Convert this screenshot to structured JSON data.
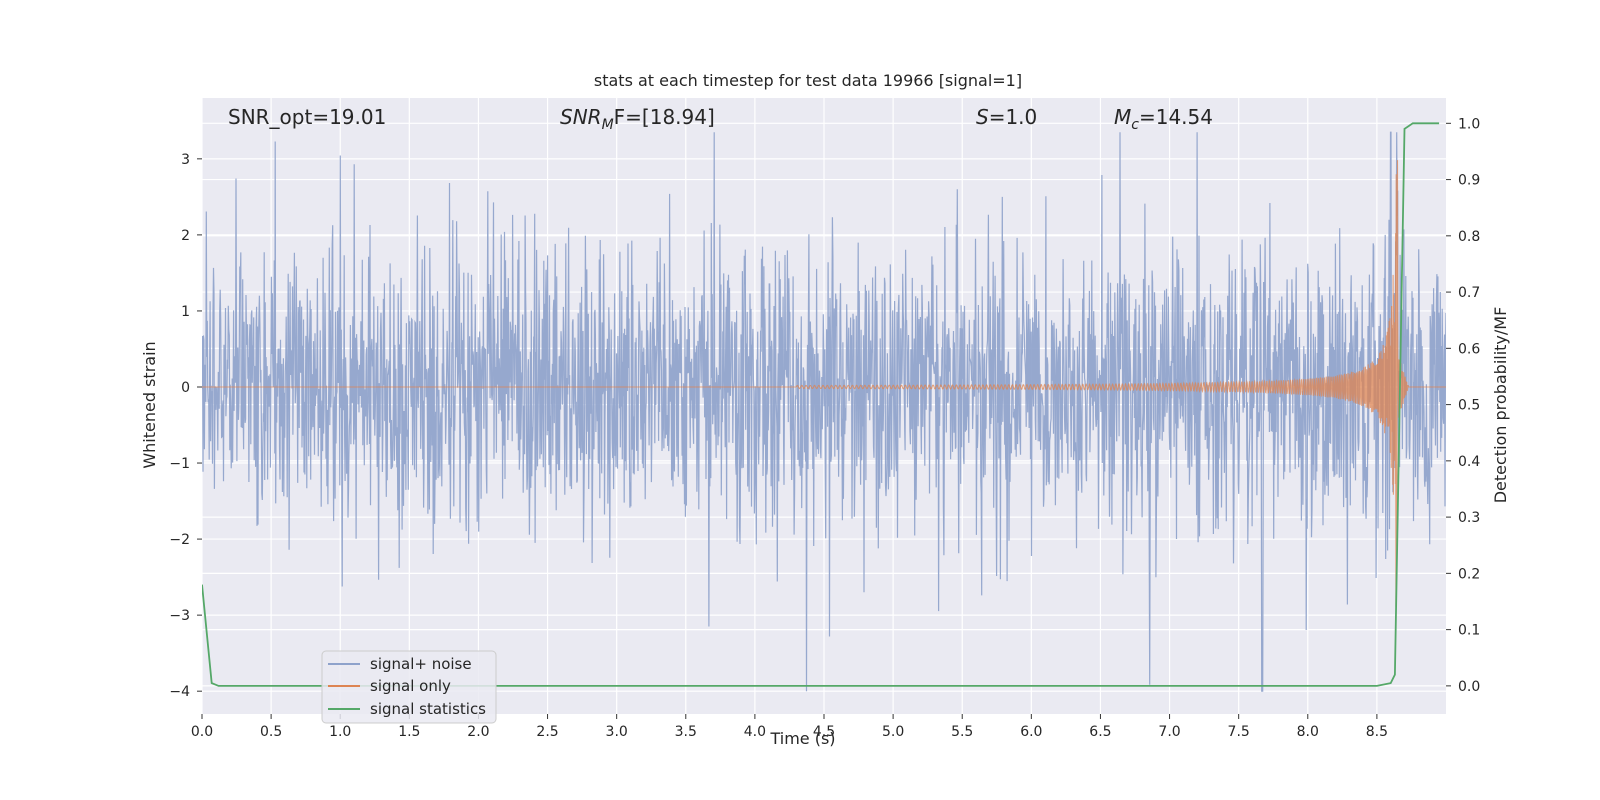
{
  "chart_data": {
    "type": "line",
    "title": "stats at each timestep for test data 19966 [signal=1]",
    "xlabel": "Time (s)",
    "ylabel": "Whitened strain",
    "y2label": "Detection probability/MF",
    "xlim": [
      0.0,
      9.0
    ],
    "ylim": [
      -4.3,
      3.8
    ],
    "y2lim": [
      -0.05,
      1.045
    ],
    "xticks": [
      "0.0",
      "0.5",
      "1.0",
      "1.5",
      "2.0",
      "2.5",
      "3.0",
      "3.5",
      "4.0",
      "4.5",
      "5.0",
      "5.5",
      "6.0",
      "6.5",
      "7.0",
      "7.5",
      "8.0",
      "8.5"
    ],
    "yticks": [
      "3",
      "2",
      "1",
      "0",
      "−1",
      "−2",
      "−3",
      "−4"
    ],
    "y2ticks": [
      "1.0",
      "0.9",
      "0.8",
      "0.7",
      "0.6",
      "0.5",
      "0.4",
      "0.3",
      "0.2",
      "0.1",
      "0.0"
    ],
    "grid": true,
    "legend_position": "lower-left",
    "annotations": {
      "snr_opt": "SNR_opt=19.01",
      "snr_mf_base": "SNR",
      "snr_mf_sub": "M",
      "snr_mf_rest": "F=[18.94]",
      "s_var": "S",
      "s_rest": "=1.0",
      "mc_var": "M",
      "mc_sub": "c",
      "mc_rest": "=14.54"
    },
    "series": [
      {
        "name": "signal+ noise",
        "color": "#8ea2cb",
        "description_of_data": "whitened strain, noise dominated",
        "envelope_typical": [
          -1.6,
          1.6
        ],
        "extremes": {
          "max": 3.35,
          "min": -4.0,
          "t_max": 8.6,
          "t_min": 7.67
        }
      },
      {
        "name": "signal only",
        "color": "#dd8452",
        "chirp": {
          "t_start": 4.3,
          "t_merge": 8.65,
          "amp_start": 0.02,
          "amp_peak": 3.0
        }
      },
      {
        "name": "signal statistics",
        "color": "#55a868",
        "x": [
          0.0,
          0.07,
          0.12,
          0.5,
          1.0,
          2.0,
          3.0,
          4.0,
          5.0,
          6.0,
          7.0,
          8.0,
          8.5,
          8.6,
          8.63,
          8.7,
          8.76,
          8.85,
          8.95
        ],
        "y": [
          0.18,
          0.005,
          0.0,
          0.0,
          0.0,
          0.0,
          0.0,
          0.0,
          0.0,
          0.0,
          0.0,
          0.0,
          0.0,
          0.005,
          0.02,
          0.99,
          1.0,
          1.0,
          1.0
        ]
      }
    ]
  },
  "legend": {
    "items": [
      {
        "label": "signal+ noise",
        "color": "#8ea2cb"
      },
      {
        "label": "signal only",
        "color": "#dd8452"
      },
      {
        "label": "signal statistics",
        "color": "#55a868"
      }
    ]
  },
  "colors": {
    "plot_bg": "#eaeaf2",
    "grid": "#ffffff",
    "text": "#262626"
  }
}
